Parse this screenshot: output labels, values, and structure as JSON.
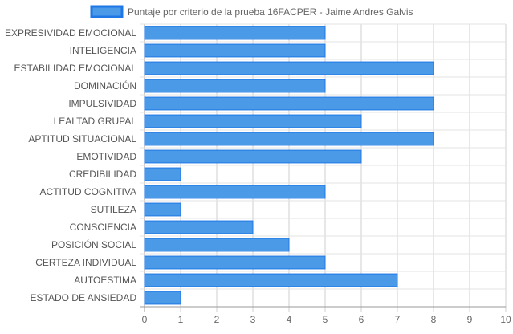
{
  "chart_data": {
    "type": "bar",
    "orientation": "horizontal",
    "categories": [
      "EXPRESIVIDAD EMOCIONAL",
      "INTELIGENCIA",
      "ESTABILIDAD EMOCIONAL",
      "DOMINACIÓN",
      "IMPULSIVIDAD",
      "LEALTAD GRUPAL",
      "APTITUD SITUACIONAL",
      "EMOTIVIDAD",
      "CREDIBILIDAD",
      "ACTITUD COGNITIVA",
      "SUTILEZA",
      "CONSCIENCIA",
      "POSICIÓN SOCIAL",
      "CERTEZA INDIVIDUAL",
      "AUTOESTIMA",
      "ESTADO DE ANSIEDAD"
    ],
    "series": [
      {
        "name": "Puntaje por criterio de la prueba 16FACPER - Jaime Andres Galvis",
        "values": [
          5,
          5,
          8,
          5,
          8,
          6,
          8,
          6,
          1,
          5,
          1,
          3,
          4,
          5,
          7,
          1
        ],
        "color": "#4a9ae8",
        "border_color": "#1f77e6"
      }
    ],
    "xlim": [
      0,
      10
    ],
    "x_ticks": [
      "0",
      "1",
      "2",
      "3",
      "4",
      "5",
      "6",
      "7",
      "8",
      "9",
      "10"
    ],
    "grid": true,
    "legend_position": "top"
  }
}
